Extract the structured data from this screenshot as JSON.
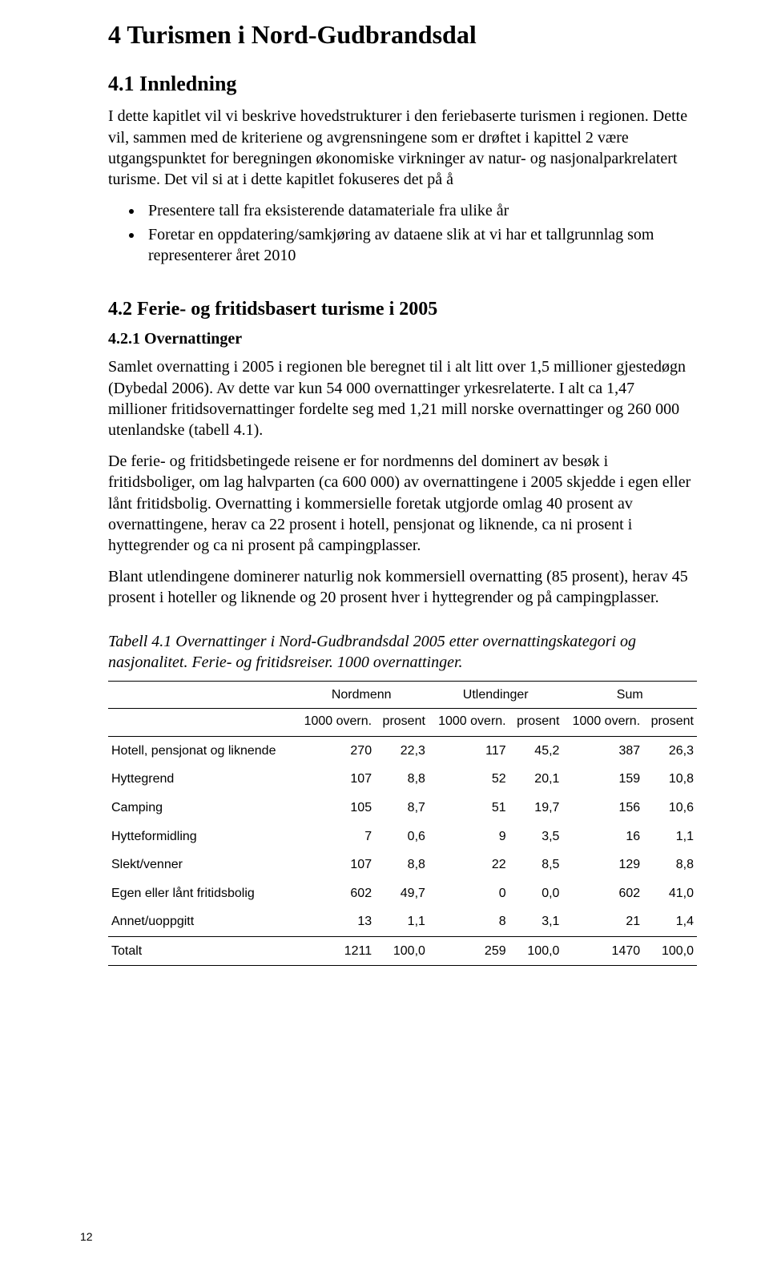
{
  "heading_main": "4  Turismen i Nord-Gudbrandsdal",
  "section_41": {
    "title": "4.1  Innledning",
    "p1": "I dette kapitlet vil vi beskrive hovedstrukturer i den feriebaserte turismen i regionen. Dette vil, sammen med de kriteriene og avgrensningene som er drøftet i kapittel 2 være utgangspunktet for beregningen økonomiske virkninger av natur- og nasjonalparkrelatert turisme. Det vil si at i dette kapitlet fokuseres det på å",
    "bullets": [
      "Presentere tall fra eksisterende datamateriale fra ulike år",
      "Foretar en oppdatering/samkjøring av dataene slik at vi har et tallgrunnlag som representerer året 2010"
    ]
  },
  "section_42": {
    "title": "4.2  Ferie- og fritidsbasert turisme i 2005",
    "sub_title": "4.2.1  Overnattinger",
    "p1": "Samlet overnatting i 2005 i regionen ble beregnet til i alt litt over 1,5 millioner gjestedøgn (Dybedal 2006). Av dette var kun 54 000 overnattinger yrkesrelaterte. I alt ca 1,47 millioner fritidsovernattinger fordelte seg med 1,21 mill norske overnattinger og 260 000 utenlandske (tabell 4.1).",
    "p2": "De ferie- og fritidsbetingede reisene er for nordmenns del dominert av besøk i fritidsboliger, om lag halvparten (ca 600 000) av overnattingene i 2005 skjedde i egen eller lånt fritidsbolig. Overnatting i kommersielle foretak utgjorde omlag 40 prosent av overnattingene, herav ca 22 prosent i hotell, pensjonat og liknende, ca ni prosent i hyttegrender og ca ni prosent på campingplasser.",
    "p3": "Blant utlendingene dominerer naturlig nok kommersiell overnatting (85 prosent), herav 45 prosent i hoteller og liknende og 20 prosent hver i hyttegrender og på campingplasser."
  },
  "table": {
    "caption": "Tabell 4.1 Overnattinger i Nord-Gudbrandsdal 2005 etter overnattingskategori og nasjonalitet. Ferie- og fritidsreiser. 1000 overnattinger.",
    "group_headers": [
      "Nordmenn",
      "Utlendinger",
      "Sum"
    ],
    "sub_headers": [
      "1000 overn.",
      "prosent",
      "1000 overn.",
      "prosent",
      "1000 overn.",
      "prosent"
    ],
    "rows": [
      {
        "label": "Hotell, pensjonat og liknende",
        "values": [
          "270",
          "22,3",
          "117",
          "45,2",
          "387",
          "26,3"
        ]
      },
      {
        "label": "Hyttegrend",
        "values": [
          "107",
          "8,8",
          "52",
          "20,1",
          "159",
          "10,8"
        ]
      },
      {
        "label": "Camping",
        "values": [
          "105",
          "8,7",
          "51",
          "19,7",
          "156",
          "10,6"
        ]
      },
      {
        "label": "Hytteformidling",
        "values": [
          "7",
          "0,6",
          "9",
          "3,5",
          "16",
          "1,1"
        ]
      },
      {
        "label": "Slekt/venner",
        "values": [
          "107",
          "8,8",
          "22",
          "8,5",
          "129",
          "8,8"
        ]
      },
      {
        "label": "Egen eller lånt fritidsbolig",
        "values": [
          "602",
          "49,7",
          "0",
          "0,0",
          "602",
          "41,0"
        ]
      },
      {
        "label": "Annet/uoppgitt",
        "values": [
          "13",
          "1,1",
          "8",
          "3,1",
          "21",
          "1,4"
        ]
      }
    ],
    "total": {
      "label": "Totalt",
      "values": [
        "1211",
        "100,0",
        "259",
        "100,0",
        "1470",
        "100,0"
      ]
    }
  },
  "pagenum": "12"
}
